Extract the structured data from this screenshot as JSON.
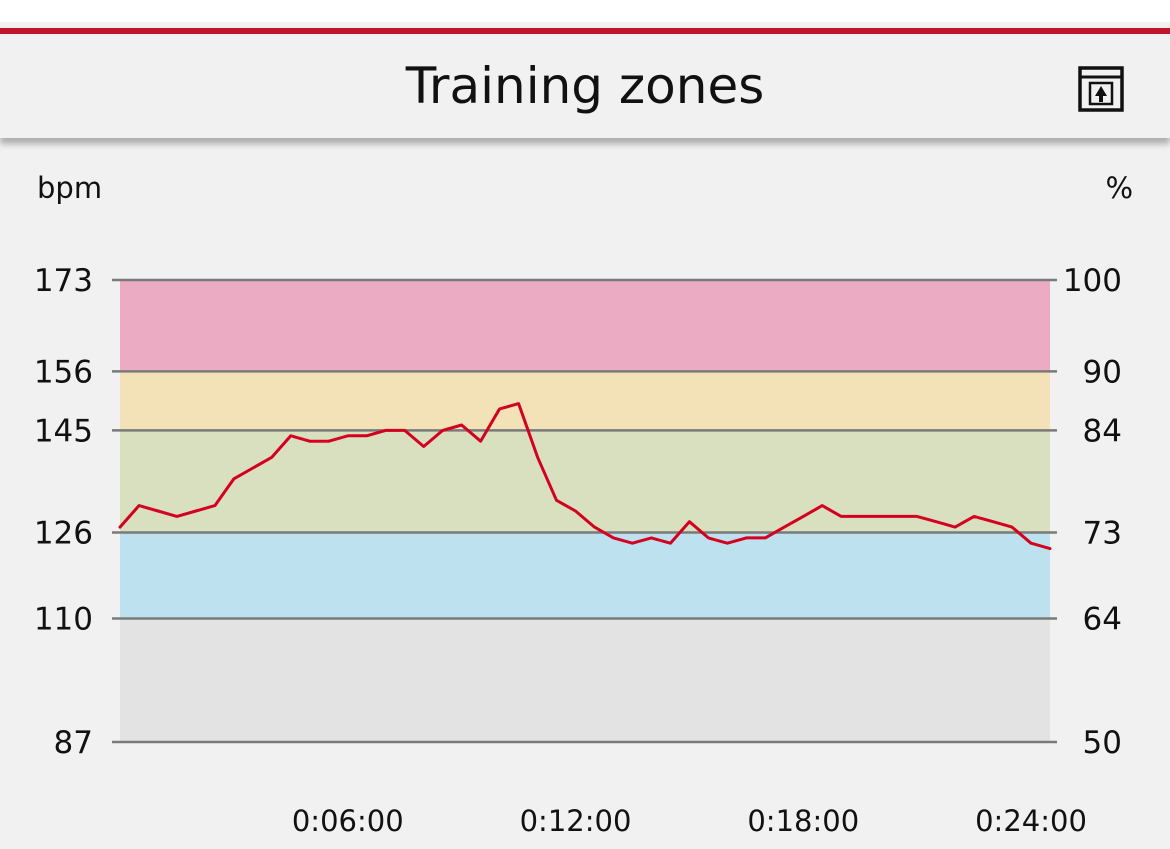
{
  "header": {
    "title": "Training zones",
    "export_icon": "export-share-icon"
  },
  "colors": {
    "accent": "#c0152c",
    "line": "#d4001f",
    "gridline": "#7a7a7a",
    "zones": [
      "#e3e3e3",
      "#bde1ef",
      "#d9e0bf",
      "#f3e2b7",
      "#ebabc2"
    ]
  },
  "chart_data": {
    "type": "line",
    "left_axis_unit": "bpm",
    "right_axis_unit": "%",
    "ylim": [
      87,
      173
    ],
    "xlim": [
      "0:00:00",
      "0:24:30"
    ],
    "y_ticks_left": [
      87,
      110,
      126,
      145,
      156,
      173
    ],
    "y_ticks_right": [
      50,
      64,
      73,
      84,
      90,
      100
    ],
    "x_ticks": [
      "0:06:00",
      "0:12:00",
      "0:18:00",
      "0:24:00"
    ],
    "zones": [
      {
        "min": 87,
        "max": 110,
        "color": "#e3e3e3"
      },
      {
        "min": 110,
        "max": 126,
        "color": "#bde1ef"
      },
      {
        "min": 126,
        "max": 145,
        "color": "#d9e0bf"
      },
      {
        "min": 145,
        "max": 156,
        "color": "#f3e2b7"
      },
      {
        "min": 156,
        "max": 173,
        "color": "#ebabc2"
      }
    ],
    "series": [
      {
        "x": [
          "0:00:00",
          "0:00:30",
          "0:01:00",
          "0:01:30",
          "0:02:00",
          "0:02:30",
          "0:03:00",
          "0:03:30",
          "0:04:00",
          "0:04:30",
          "0:05:00",
          "0:05:30",
          "0:06:00",
          "0:06:30",
          "0:07:00",
          "0:07:30",
          "0:08:00",
          "0:08:30",
          "0:09:00",
          "0:09:30",
          "0:10:00",
          "0:10:30",
          "0:11:00",
          "0:11:30",
          "0:12:00",
          "0:12:30",
          "0:13:00",
          "0:13:30",
          "0:14:00",
          "0:14:30",
          "0:15:00",
          "0:15:30",
          "0:16:00",
          "0:16:30",
          "0:17:00",
          "0:17:30",
          "0:18:00",
          "0:18:30",
          "0:19:00",
          "0:19:30",
          "0:20:00",
          "0:20:30",
          "0:21:00",
          "0:21:30",
          "0:22:00",
          "0:22:30",
          "0:23:00",
          "0:23:30",
          "0:24:00",
          "0:24:30"
        ],
        "values": [
          127,
          131,
          130,
          129,
          130,
          131,
          136,
          138,
          140,
          144,
          143,
          143,
          144,
          144,
          145,
          145,
          142,
          145,
          146,
          143,
          149,
          150,
          140,
          132,
          130,
          127,
          125,
          124,
          125,
          124,
          128,
          125,
          124,
          125,
          125,
          127,
          129,
          131,
          129,
          129,
          129,
          129,
          129,
          128,
          127,
          129,
          128,
          127,
          124,
          123
        ]
      }
    ]
  }
}
